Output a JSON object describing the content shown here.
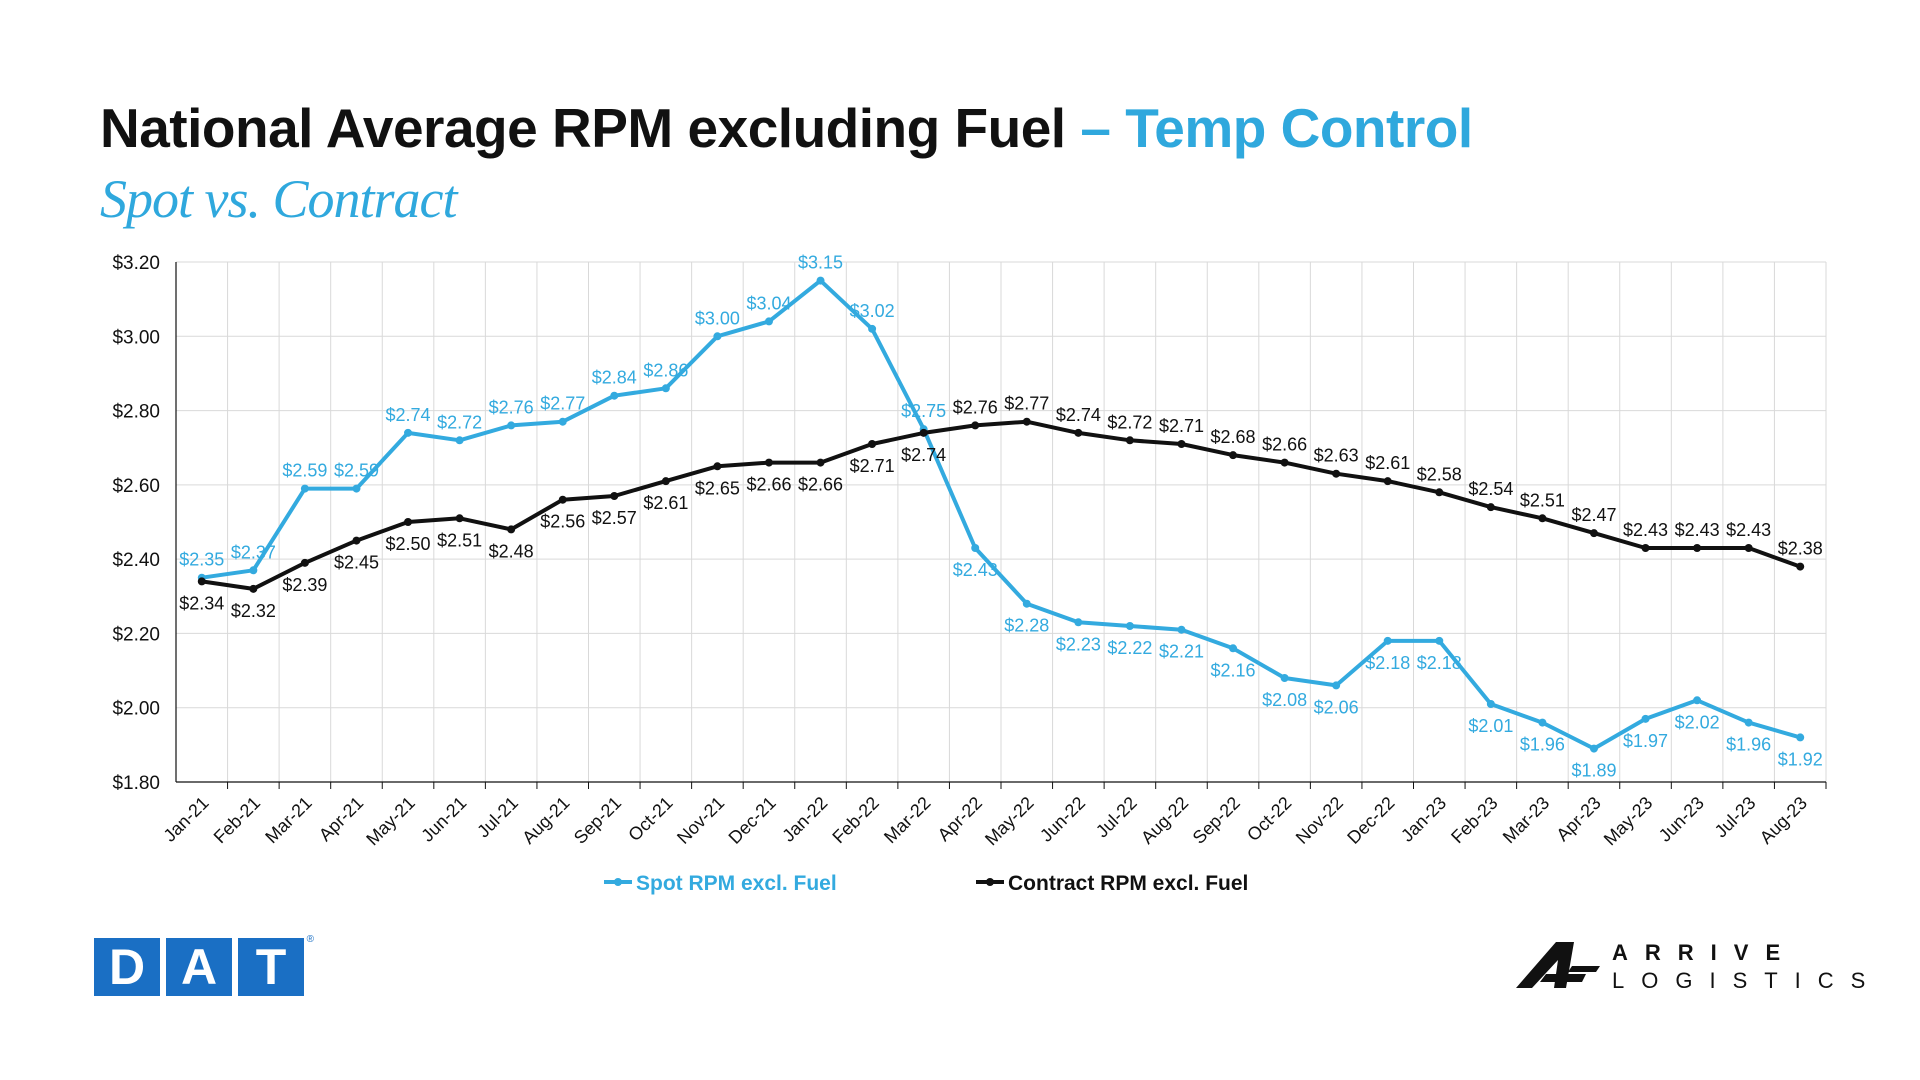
{
  "title": {
    "main": "National Average RPM excluding Fuel",
    "accent": "– Temp Control"
  },
  "subtitle": "Spot vs. Contract",
  "colors": {
    "spot": "#33aadf",
    "contract": "#111111",
    "accent": "#2fa8dd",
    "dat": "#1a6fc4"
  },
  "chart_data": {
    "type": "line",
    "categories": [
      "Jan-21",
      "Feb-21",
      "Mar-21",
      "Apr-21",
      "May-21",
      "Jun-21",
      "Jul-21",
      "Aug-21",
      "Sep-21",
      "Oct-21",
      "Nov-21",
      "Dec-21",
      "Jan-22",
      "Feb-22",
      "Mar-22",
      "Apr-22",
      "May-22",
      "Jun-22",
      "Jul-22",
      "Aug-22",
      "Sep-22",
      "Oct-22",
      "Nov-22",
      "Dec-22",
      "Jan-23",
      "Feb-23",
      "Mar-23",
      "Apr-23",
      "May-23",
      "Jun-23",
      "Jul-23",
      "Aug-23"
    ],
    "series": [
      {
        "name": "Spot RPM excl. Fuel",
        "color": "#33aadf",
        "values": [
          2.35,
          2.37,
          2.59,
          2.59,
          2.74,
          2.72,
          2.76,
          2.77,
          2.84,
          2.86,
          3.0,
          3.04,
          3.15,
          3.02,
          2.75,
          2.43,
          2.28,
          2.23,
          2.22,
          2.21,
          2.16,
          2.08,
          2.06,
          2.18,
          2.18,
          2.01,
          1.96,
          1.89,
          1.97,
          2.02,
          1.96,
          1.92
        ]
      },
      {
        "name": "Contract RPM excl. Fuel",
        "color": "#111111",
        "values": [
          2.34,
          2.32,
          2.39,
          2.45,
          2.5,
          2.51,
          2.48,
          2.56,
          2.57,
          2.61,
          2.65,
          2.66,
          2.66,
          2.71,
          2.74,
          2.76,
          2.77,
          2.74,
          2.72,
          2.71,
          2.68,
          2.66,
          2.63,
          2.61,
          2.58,
          2.54,
          2.51,
          2.47,
          2.43,
          2.43,
          2.43,
          2.38
        ]
      }
    ],
    "ylim": [
      1.8,
      3.2
    ],
    "yticks": [
      1.8,
      2.0,
      2.2,
      2.4,
      2.6,
      2.8,
      3.0,
      3.2
    ],
    "ytick_labels": [
      "$1.80",
      "$2.00",
      "$2.20",
      "$2.40",
      "$2.60",
      "$2.80",
      "$3.00",
      "$3.20"
    ],
    "value_prefix": "$",
    "grid": true,
    "legend": "bottom"
  },
  "logos": {
    "dat": [
      "D",
      "A",
      "T"
    ],
    "dat_reg": "®",
    "arrive_top": "ARRIVE",
    "arrive_bottom": "LOGISTICS"
  }
}
